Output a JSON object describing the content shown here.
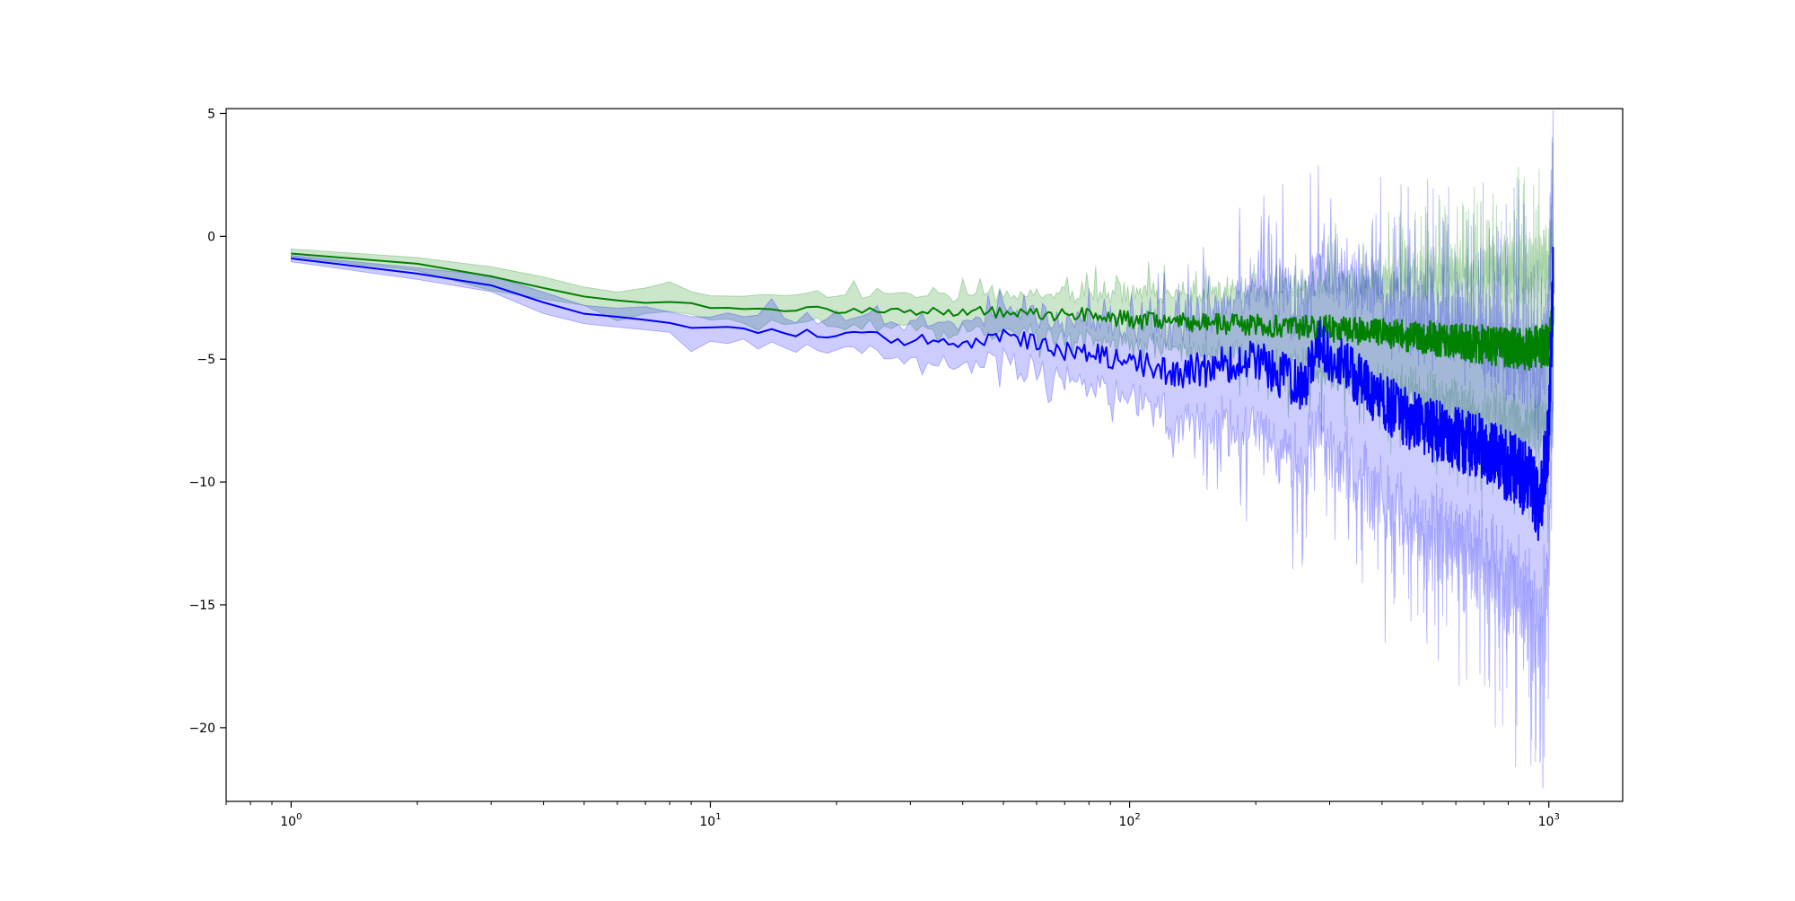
{
  "chart_data": {
    "type": "line",
    "title": "",
    "xlabel": "",
    "ylabel": "",
    "xscale": "log",
    "xlim": [
      0.7,
      1500
    ],
    "ylim": [
      -23.0,
      5.2
    ],
    "grid": false,
    "legend": "none",
    "x_ticks": [
      {
        "value": 1,
        "base": "10",
        "exp": "0"
      },
      {
        "value": 10,
        "base": "10",
        "exp": "1"
      },
      {
        "value": 100,
        "base": "10",
        "exp": "2"
      },
      {
        "value": 1000,
        "base": "10",
        "exp": "3"
      }
    ],
    "y_ticks": [
      {
        "value": 5,
        "label": "5"
      },
      {
        "value": 0,
        "label": "0"
      },
      {
        "value": -5,
        "label": "−5"
      },
      {
        "value": -10,
        "label": "−10"
      },
      {
        "value": -15,
        "label": "−15"
      },
      {
        "value": -20,
        "label": "−20"
      }
    ],
    "series": [
      {
        "color": "#008000",
        "band_color": "#008000",
        "band_opacity": 0.2,
        "mean_anchors": [
          [
            1,
            -0.7
          ],
          [
            2,
            -1.1
          ],
          [
            3,
            -1.6
          ],
          [
            4,
            -2.1
          ],
          [
            5,
            -2.5
          ],
          [
            6,
            -2.6
          ],
          [
            8,
            -2.75
          ],
          [
            10,
            -2.85
          ],
          [
            15,
            -2.95
          ],
          [
            20,
            -3.0
          ],
          [
            30,
            -3.05
          ],
          [
            50,
            -3.1
          ],
          [
            80,
            -3.2
          ],
          [
            100,
            -3.4
          ],
          [
            150,
            -3.55
          ],
          [
            200,
            -3.6
          ],
          [
            300,
            -3.75
          ],
          [
            500,
            -4.1
          ],
          [
            700,
            -4.4
          ],
          [
            900,
            -4.6
          ],
          [
            1000,
            -4.4
          ],
          [
            1024,
            -3.5
          ]
        ],
        "noise_anchors": [
          [
            1,
            0.0
          ],
          [
            5,
            0.05
          ],
          [
            10,
            0.1
          ],
          [
            20,
            0.15
          ],
          [
            50,
            0.25
          ],
          [
            100,
            0.35
          ],
          [
            200,
            0.45
          ],
          [
            400,
            0.6
          ],
          [
            700,
            0.8
          ],
          [
            1000,
            0.9
          ]
        ],
        "half_width_anchors": [
          [
            1,
            0.15
          ],
          [
            3,
            0.4
          ],
          [
            5,
            0.5
          ],
          [
            10,
            0.55
          ],
          [
            20,
            0.75
          ],
          [
            50,
            0.95
          ],
          [
            100,
            1.2
          ],
          [
            200,
            1.7
          ],
          [
            400,
            2.6
          ],
          [
            700,
            3.7
          ],
          [
            1000,
            4.3
          ]
        ]
      },
      {
        "color": "#0000ff",
        "band_color": "#0000ff",
        "band_opacity": 0.2,
        "mean_anchors": [
          [
            1,
            -0.9
          ],
          [
            2,
            -1.5
          ],
          [
            3,
            -2.0
          ],
          [
            4,
            -2.7
          ],
          [
            5,
            -3.2
          ],
          [
            6,
            -3.3
          ],
          [
            8,
            -3.6
          ],
          [
            10,
            -3.7
          ],
          [
            15,
            -3.9
          ],
          [
            20,
            -4.05
          ],
          [
            30,
            -4.2
          ],
          [
            45,
            -4.4
          ],
          [
            50,
            -4.0
          ],
          [
            60,
            -4.4
          ],
          [
            80,
            -4.8
          ],
          [
            100,
            -5.0
          ],
          [
            130,
            -5.6
          ],
          [
            200,
            -5.0
          ],
          [
            260,
            -6.2
          ],
          [
            280,
            -4.4
          ],
          [
            300,
            -4.8
          ],
          [
            400,
            -6.7
          ],
          [
            500,
            -7.8
          ],
          [
            700,
            -8.6
          ],
          [
            900,
            -10.0
          ],
          [
            950,
            -11.2
          ],
          [
            1000,
            -8.0
          ],
          [
            1024,
            -1.5
          ]
        ],
        "noise_anchors": [
          [
            1,
            0.0
          ],
          [
            5,
            0.05
          ],
          [
            10,
            0.1
          ],
          [
            20,
            0.2
          ],
          [
            50,
            0.35
          ],
          [
            100,
            0.5
          ],
          [
            200,
            0.9
          ],
          [
            400,
            1.2
          ],
          [
            700,
            1.4
          ],
          [
            1000,
            1.6
          ]
        ],
        "half_width_anchors": [
          [
            1,
            0.15
          ],
          [
            3,
            0.4
          ],
          [
            5,
            0.5
          ],
          [
            10,
            0.6
          ],
          [
            20,
            0.8
          ],
          [
            50,
            1.2
          ],
          [
            100,
            1.8
          ],
          [
            150,
            2.8
          ],
          [
            200,
            3.6
          ],
          [
            400,
            5.0
          ],
          [
            700,
            5.8
          ],
          [
            1000,
            6.8
          ]
        ]
      }
    ]
  }
}
